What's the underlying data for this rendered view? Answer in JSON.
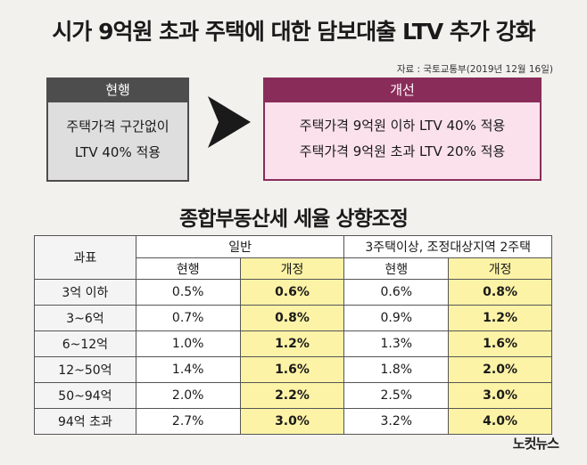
{
  "header": {
    "title": "시가 9억원 초과 주택에 대한 담보대출 LTV 추가 강화",
    "source": "자료 : 국토교통부(2019년 12월 16일)"
  },
  "ltv": {
    "current": {
      "label": "현행",
      "lines": [
        "주택가격 구간없이",
        "LTV 40% 적용"
      ]
    },
    "improved": {
      "label": "개선",
      "lines": [
        "주택가격 9억원 이하 LTV 40% 적용",
        "주택가격 9억원 초과 LTV 20% 적용"
      ]
    }
  },
  "tax": {
    "title": "종합부동산세 세율 상향조정",
    "header": {
      "bracket": "과표",
      "group1": "일반",
      "group2": "3주택이상, 조정대상지역 2주택",
      "current": "현행",
      "revised": "개정"
    },
    "rows": [
      {
        "bracket": "3억 이하",
        "g_cur": "0.5%",
        "g_rev": "0.6%",
        "m_cur": "0.6%",
        "m_rev": "0.8%"
      },
      {
        "bracket": "3~6억",
        "g_cur": "0.7%",
        "g_rev": "0.8%",
        "m_cur": "0.9%",
        "m_rev": "1.2%"
      },
      {
        "bracket": "6~12억",
        "g_cur": "1.0%",
        "g_rev": "1.2%",
        "m_cur": "1.3%",
        "m_rev": "1.6%"
      },
      {
        "bracket": "12~50억",
        "g_cur": "1.4%",
        "g_rev": "1.6%",
        "m_cur": "1.8%",
        "m_rev": "2.0%"
      },
      {
        "bracket": "50~94억",
        "g_cur": "2.0%",
        "g_rev": "2.2%",
        "m_cur": "2.5%",
        "m_rev": "3.0%"
      },
      {
        "bracket": "94억 초과",
        "g_cur": "2.7%",
        "g_rev": "3.0%",
        "m_cur": "3.2%",
        "m_rev": "4.0%"
      }
    ]
  },
  "footer": {
    "logo": "노컷뉴스"
  },
  "colors": {
    "current_header": "#4d4d4d",
    "improved_header": "#8a2c5a",
    "improved_body": "#fbe1ec",
    "highlight": "#fdf3a6"
  }
}
